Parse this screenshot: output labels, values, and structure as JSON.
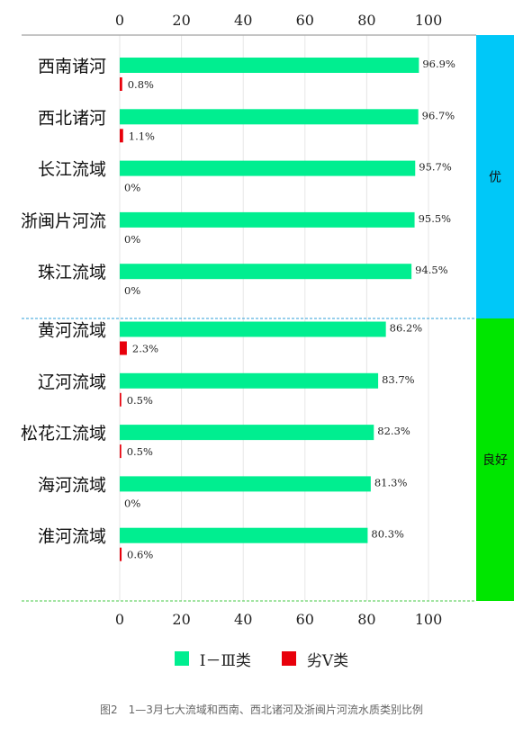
{
  "colors": {
    "good": "#00EE90",
    "bad": "#E8000B",
    "grade_excellent": "#00C8F8",
    "grade_good": "#00E600",
    "axis": "#b0b0b0",
    "divider": "#2F9FD8",
    "bottom_line": "#44C844"
  },
  "chart_data": {
    "type": "bar",
    "orientation": "horizontal",
    "xlim": [
      0,
      100
    ],
    "xticks": [
      0,
      20,
      40,
      60,
      80,
      100
    ],
    "grid": true,
    "legend_position": "bottom",
    "categories": [
      "西南诸河",
      "西北诸河",
      "长江流域",
      "浙闽片河流",
      "珠江流域",
      "黄河流域",
      "辽河流域",
      "松花江流域",
      "海河流域",
      "淮河流域"
    ],
    "series": [
      {
        "name": "Ⅰ－Ⅲ类",
        "values": [
          96.9,
          96.7,
          95.7,
          95.5,
          94.5,
          86.2,
          83.7,
          82.3,
          81.3,
          80.3
        ],
        "labels": [
          "96.9%",
          "96.7%",
          "95.7%",
          "95.5%",
          "94.5%",
          "86.2%",
          "83.7%",
          "82.3%",
          "81.3%",
          "80.3%"
        ]
      },
      {
        "name": "劣Ⅴ类",
        "values": [
          0.8,
          1.1,
          0,
          0,
          0,
          2.3,
          0.5,
          0.5,
          0,
          0.6
        ],
        "labels": [
          "0.8%",
          "1.1%",
          "0%",
          "0%",
          "0%",
          "2.3%",
          "0.5%",
          "0.5%",
          "0%",
          "0.6%"
        ]
      }
    ],
    "groups": [
      {
        "label": "优",
        "count": 5
      },
      {
        "label": "良好",
        "count": 5
      }
    ]
  },
  "legend": [
    {
      "label": "Ⅰ－Ⅲ类",
      "color": "#00EE90"
    },
    {
      "label": "劣Ⅴ类",
      "color": "#E8000B"
    }
  ],
  "caption": "图2　1—3月七大流域和西南、西北诸河及浙闽片河流水质类别比例"
}
